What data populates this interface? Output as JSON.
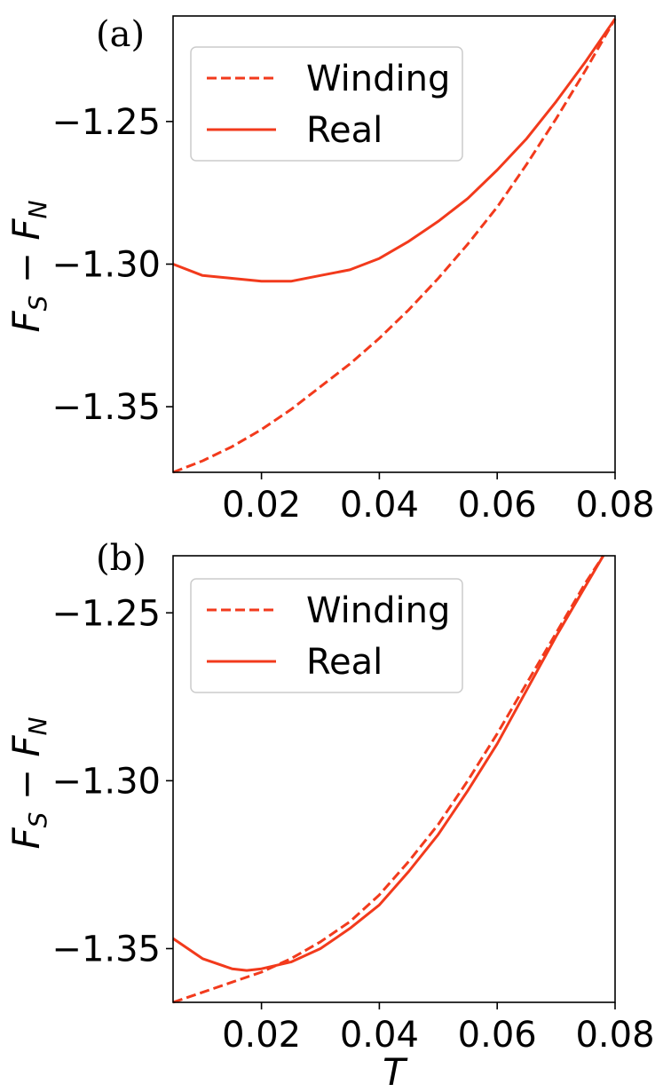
{
  "chart_data": [
    {
      "type": "line",
      "panel_label": "(a)",
      "xlabel": "",
      "ylabel": "F_S − F_N",
      "xlim": [
        0.005,
        0.08
      ],
      "ylim": [
        -1.373,
        -1.213
      ],
      "xticks": [
        0.02,
        0.04,
        0.06,
        0.08
      ],
      "xtick_labels": [
        "0.02",
        "0.04",
        "0.06",
        "0.08"
      ],
      "yticks": [
        -1.35,
        -1.3,
        -1.25
      ],
      "ytick_labels": [
        "−1.35",
        "−1.30",
        "−1.25"
      ],
      "grid": false,
      "legend": "upper-left",
      "color": "#f23a1c",
      "series": [
        {
          "name": "Winding",
          "style": "dashed",
          "x": [
            0.005,
            0.01,
            0.015,
            0.02,
            0.025,
            0.03,
            0.035,
            0.04,
            0.045,
            0.05,
            0.055,
            0.06,
            0.065,
            0.07,
            0.075,
            0.08
          ],
          "y": [
            -1.373,
            -1.369,
            -1.364,
            -1.358,
            -1.351,
            -1.343,
            -1.335,
            -1.326,
            -1.316,
            -1.305,
            -1.293,
            -1.28,
            -1.265,
            -1.249,
            -1.232,
            -1.214
          ]
        },
        {
          "name": "Real",
          "style": "solid",
          "x": [
            0.005,
            0.01,
            0.015,
            0.02,
            0.025,
            0.03,
            0.035,
            0.04,
            0.045,
            0.05,
            0.055,
            0.06,
            0.065,
            0.07,
            0.075,
            0.08
          ],
          "y": [
            -1.3,
            -1.304,
            -1.305,
            -1.306,
            -1.306,
            -1.304,
            -1.302,
            -1.298,
            -1.292,
            -1.285,
            -1.277,
            -1.267,
            -1.256,
            -1.243,
            -1.229,
            -1.214
          ]
        }
      ]
    },
    {
      "type": "line",
      "panel_label": "(b)",
      "xlabel": "T",
      "ylabel": "F_S − F_N",
      "xlim": [
        0.005,
        0.08
      ],
      "ylim": [
        -1.366,
        -1.233
      ],
      "xticks": [
        0.02,
        0.04,
        0.06,
        0.08
      ],
      "xtick_labels": [
        "0.02",
        "0.04",
        "0.06",
        "0.08"
      ],
      "yticks": [
        -1.35,
        -1.3,
        -1.25
      ],
      "ytick_labels": [
        "−1.35",
        "−1.30",
        "−1.25"
      ],
      "grid": false,
      "legend": "upper-left",
      "color": "#f23a1c",
      "series": [
        {
          "name": "Winding",
          "style": "dashed",
          "x": [
            0.005,
            0.01,
            0.015,
            0.02,
            0.025,
            0.03,
            0.035,
            0.04,
            0.045,
            0.05,
            0.055,
            0.06,
            0.065,
            0.07,
            0.075,
            0.078
          ],
          "y": [
            -1.366,
            -1.363,
            -1.36,
            -1.357,
            -1.353,
            -1.348,
            -1.342,
            -1.334,
            -1.324,
            -1.313,
            -1.3,
            -1.286,
            -1.271,
            -1.256,
            -1.241,
            -1.233
          ]
        },
        {
          "name": "Real",
          "style": "solid",
          "x": [
            0.005,
            0.01,
            0.015,
            0.0175,
            0.02,
            0.025,
            0.03,
            0.035,
            0.04,
            0.045,
            0.05,
            0.055,
            0.06,
            0.065,
            0.07,
            0.075,
            0.078
          ],
          "y": [
            -1.347,
            -1.353,
            -1.356,
            -1.3565,
            -1.356,
            -1.354,
            -1.35,
            -1.344,
            -1.337,
            -1.327,
            -1.316,
            -1.303,
            -1.289,
            -1.273,
            -1.257,
            -1.242,
            -1.233
          ]
        }
      ]
    }
  ]
}
